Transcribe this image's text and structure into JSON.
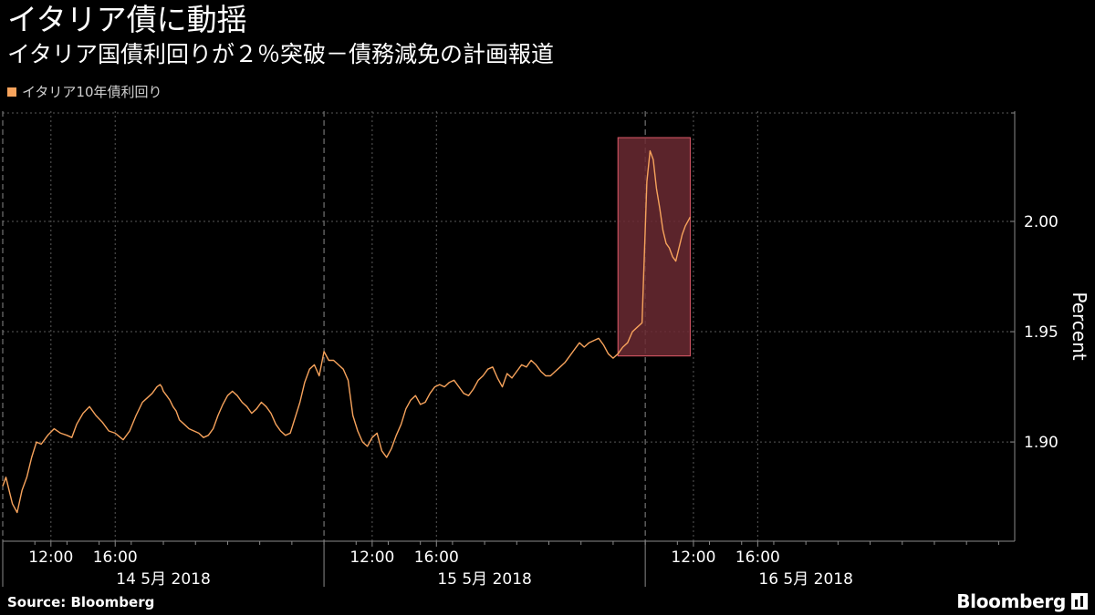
{
  "header": {
    "title": "イタリア債に動揺",
    "subtitle": "イタリア国債利回りが２％突破－債務減免の計画報道"
  },
  "legend": {
    "label": "イタリア10年債利回り",
    "color": "#f7a35c"
  },
  "footer": {
    "source": "Source:  Bloomberg",
    "brand": "Bloomberg"
  },
  "colors": {
    "background": "#000000",
    "line": "#f7a35c",
    "highlight_fill": "#6b2a33",
    "highlight_stroke": "#e05a6a",
    "grid": "#5a5a5a",
    "axis": "#8a8a8a"
  },
  "chart_data": {
    "type": "line",
    "title": "イタリア債に動揺",
    "subtitle": "イタリア国債利回りが２％突破－債務減免の計画報道",
    "ylabel": "Percent",
    "xlabel": "",
    "ylim": [
      1.855,
      2.05
    ],
    "yticks": [
      1.9,
      1.95,
      2.0
    ],
    "ytick_labels": [
      "1.90",
      "1.95",
      "2.00"
    ],
    "x_unit": "hours since 14 5月 2018 09:00",
    "xlim": [
      0,
      63
    ],
    "xticks": [
      {
        "x": 3,
        "label": "12:00"
      },
      {
        "x": 7,
        "label": "16:00"
      },
      {
        "x": 23,
        "label": "12:00"
      },
      {
        "x": 27,
        "label": "16:00"
      },
      {
        "x": 43,
        "label": "12:00"
      },
      {
        "x": 47,
        "label": "16:00"
      }
    ],
    "day_boundaries": [
      0,
      20,
      40
    ],
    "day_labels": [
      {
        "x": 10,
        "label": "14 5月  2018"
      },
      {
        "x": 30,
        "label": "15 5月  2018"
      },
      {
        "x": 50,
        "label": "16 5月  2018"
      }
    ],
    "highlight_box": {
      "x0": 38.3,
      "x1": 42.8,
      "y0": 1.939,
      "y1": 2.038
    },
    "grid": true,
    "legend_position": "top-left",
    "series": [
      {
        "name": "イタリア10年債利回り",
        "x": [
          0.0,
          0.2,
          0.4,
          0.6,
          0.9,
          1.2,
          1.5,
          1.8,
          2.1,
          2.4,
          2.8,
          3.2,
          3.6,
          4.0,
          4.3,
          4.6,
          5.0,
          5.4,
          5.8,
          6.2,
          6.6,
          7.0,
          7.5,
          7.9,
          8.3,
          8.7,
          9.0,
          9.3,
          9.6,
          9.8,
          9.9,
          10.0,
          10.2,
          10.4,
          10.6,
          10.8,
          11.0,
          11.3,
          11.6,
          11.9,
          12.2,
          12.5,
          12.8,
          13.1,
          13.4,
          13.7,
          14.0,
          14.3,
          14.6,
          14.9,
          15.2,
          15.5,
          15.8,
          16.1,
          16.4,
          16.7,
          17.0,
          17.3,
          17.6,
          17.9,
          18.2,
          18.5,
          18.8,
          19.1,
          19.4,
          19.7,
          20.0,
          20.3,
          20.6,
          20.9,
          21.2,
          21.5,
          21.8,
          22.1,
          22.4,
          22.7,
          23.0,
          23.3,
          23.6,
          23.9,
          24.2,
          24.5,
          24.8,
          25.1,
          25.4,
          25.7,
          26.0,
          26.3,
          26.6,
          26.9,
          27.2,
          27.5,
          27.8,
          28.1,
          28.4,
          28.7,
          29.0,
          29.3,
          29.6,
          29.9,
          30.2,
          30.5,
          30.8,
          31.1,
          31.4,
          31.7,
          32.0,
          32.3,
          32.6,
          32.9,
          33.2,
          33.5,
          33.8,
          34.1,
          34.4,
          34.7,
          35.0,
          35.3,
          35.6,
          35.9,
          36.2,
          36.5,
          36.8,
          37.1,
          37.4,
          37.7,
          38.0,
          38.3,
          38.6,
          38.9,
          39.2,
          39.5,
          39.8,
          40.1,
          40.3,
          40.5,
          40.7,
          40.9,
          41.1,
          41.3,
          41.5,
          41.7,
          41.9,
          42.1,
          42.3,
          42.5,
          42.8
        ],
        "values": [
          1.88,
          1.884,
          1.878,
          1.872,
          1.868,
          1.878,
          1.884,
          1.893,
          1.9,
          1.899,
          1.903,
          1.906,
          1.904,
          1.903,
          1.902,
          1.908,
          1.913,
          1.916,
          1.912,
          1.909,
          1.905,
          1.904,
          1.901,
          1.905,
          1.912,
          1.918,
          1.92,
          1.922,
          1.925,
          1.926,
          1.925,
          1.923,
          1.921,
          1.919,
          1.916,
          1.914,
          1.91,
          1.908,
          1.906,
          1.905,
          1.904,
          1.902,
          1.903,
          1.906,
          1.912,
          1.917,
          1.921,
          1.923,
          1.921,
          1.918,
          1.916,
          1.913,
          1.915,
          1.918,
          1.916,
          1.913,
          1.908,
          1.905,
          1.903,
          1.904,
          1.911,
          1.918,
          1.927,
          1.933,
          1.935,
          1.93,
          1.941,
          1.937,
          1.937,
          1.935,
          1.933,
          1.928,
          1.912,
          1.905,
          1.9,
          1.898,
          1.902,
          1.904,
          1.896,
          1.893,
          1.897,
          1.903,
          1.908,
          1.915,
          1.919,
          1.921,
          1.917,
          1.918,
          1.922,
          1.925,
          1.926,
          1.925,
          1.927,
          1.928,
          1.925,
          1.922,
          1.921,
          1.924,
          1.928,
          1.93,
          1.933,
          1.934,
          1.929,
          1.925,
          1.931,
          1.929,
          1.932,
          1.935,
          1.934,
          1.937,
          1.935,
          1.932,
          1.93,
          1.93,
          1.932,
          1.934,
          1.936,
          1.939,
          1.942,
          1.945,
          1.943,
          1.945,
          1.946,
          1.947,
          1.944,
          1.94,
          1.938,
          1.94,
          1.943,
          1.945,
          1.95,
          1.952,
          1.954,
          2.018,
          2.032,
          2.028,
          2.015,
          2.006,
          1.996,
          1.99,
          1.988,
          1.984,
          1.982,
          1.988,
          1.994,
          1.998,
          2.002
        ]
      }
    ]
  }
}
